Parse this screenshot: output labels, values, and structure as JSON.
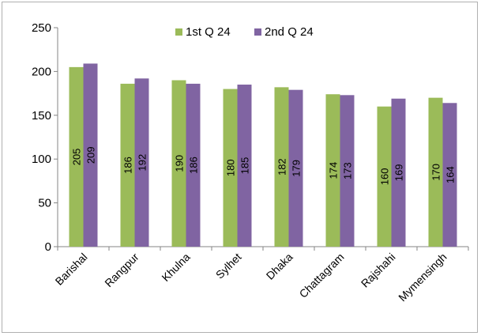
{
  "chart_data": {
    "type": "bar",
    "categories": [
      "Barishal",
      "Rangpur",
      "Khulna",
      "Sylhet",
      "Dhaka",
      "Chattagram",
      "Rajshahi",
      "Mymensingh"
    ],
    "series": [
      {
        "name": "1st Q 24",
        "color": "#9bbb59",
        "values": [
          205,
          186,
          190,
          180,
          182,
          174,
          160,
          170
        ]
      },
      {
        "name": "2nd Q 24",
        "color": "#8064a2",
        "values": [
          209,
          192,
          186,
          185,
          179,
          173,
          169,
          164
        ]
      }
    ],
    "ylim": [
      0,
      250
    ],
    "yticks": [
      0,
      50,
      100,
      150,
      200,
      250
    ],
    "grid": false,
    "legend": "top-right",
    "data_labels": "inside-rotated"
  }
}
